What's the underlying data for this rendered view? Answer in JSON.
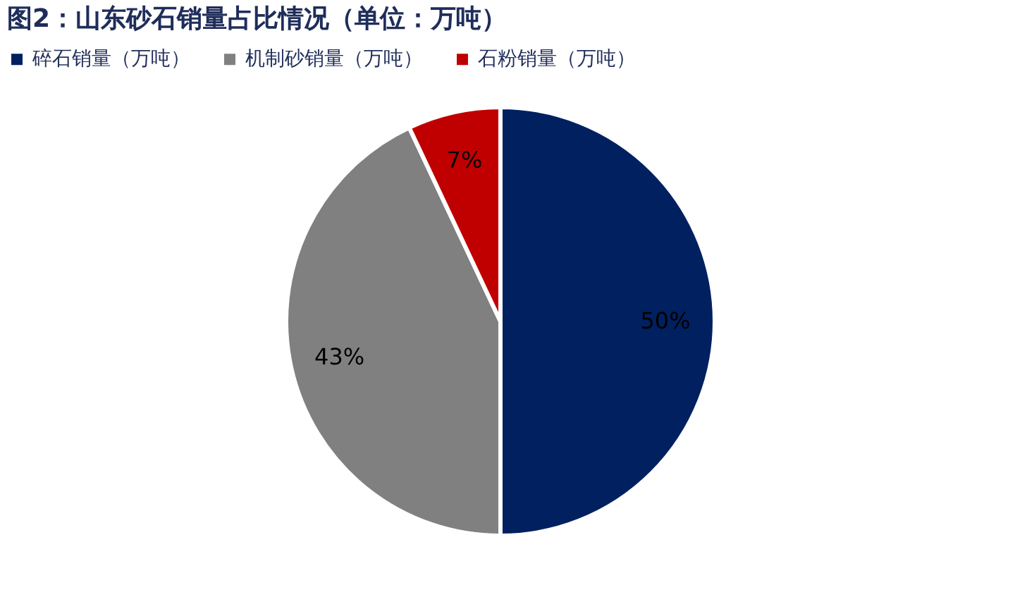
{
  "chart_data": {
    "type": "pie",
    "title": "图2：山东砂石销量占比情况（单位：万吨）",
    "categories": [
      "碎石销量（万吨）",
      "机制砂销量（万吨）",
      "石粉销量（万吨）"
    ],
    "values": [
      50,
      43,
      7
    ],
    "colors": [
      "#002060",
      "#808080",
      "#c00000"
    ],
    "value_labels": [
      "50%",
      "43%",
      "7%"
    ],
    "legend": "top"
  }
}
